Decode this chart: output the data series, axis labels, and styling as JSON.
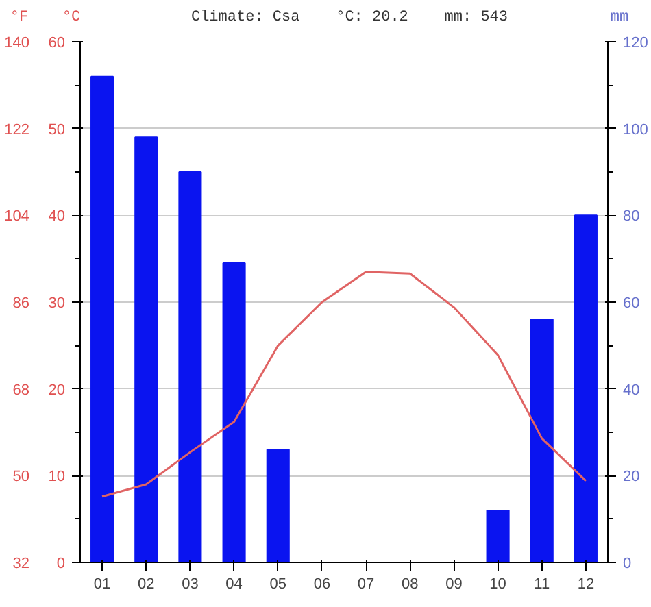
{
  "chart_data": {
    "type": "bar",
    "title": "Climate: Csa    °C: 20.2    mm: 543",
    "categories": [
      "01",
      "02",
      "03",
      "04",
      "05",
      "06",
      "07",
      "08",
      "09",
      "10",
      "11",
      "12"
    ],
    "series": [
      {
        "type": "bar",
        "axis": "y2",
        "color": "#0a14f0",
        "values": [
          112,
          98,
          90,
          69,
          26,
          0,
          0,
          0,
          0,
          12,
          56,
          80
        ]
      },
      {
        "type": "line",
        "axis": "y",
        "color": "#e06464",
        "values": [
          7.6,
          9.0,
          12.7,
          16.2,
          25.0,
          30.0,
          33.5,
          33.3,
          29.4,
          23.9,
          14.3,
          9.4
        ]
      }
    ],
    "ylabel": "°C",
    "ylim": [
      0,
      60
    ],
    "yticks": [
      0,
      10,
      20,
      30,
      40,
      50,
      60
    ],
    "y3label": "°F",
    "y3lim": [
      32,
      140
    ],
    "y3ticks": [
      32,
      50,
      68,
      86,
      104,
      122,
      140
    ],
    "y2label": "mm",
    "y2lim": [
      0,
      120
    ],
    "y2ticks": [
      0,
      20,
      40,
      60,
      80,
      100,
      120
    ],
    "grid": "y",
    "marker": "none",
    "line_style": "solid"
  }
}
